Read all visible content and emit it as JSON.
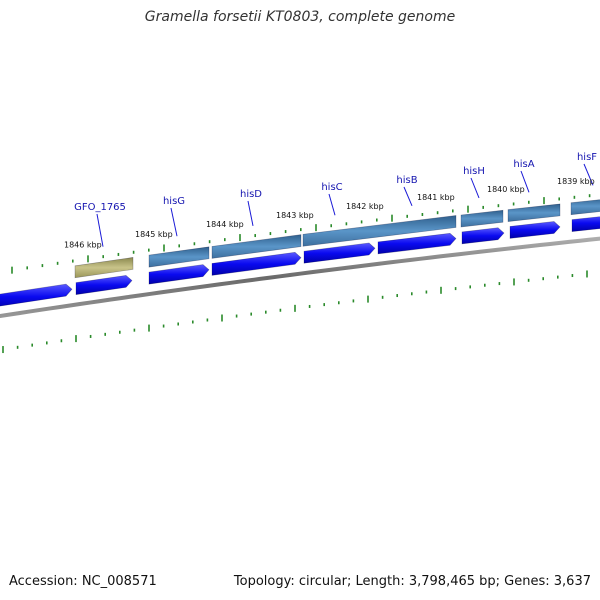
{
  "title": "Gramella forsetii KT0803, complete genome",
  "footer": {
    "accession": "Accession: NC_008571",
    "summary": "Topology: circular; Length: 3,798,465 bp; Genes: 3,637"
  },
  "colors": {
    "backbone": "#808080",
    "cds_forward": "#0a0af0",
    "gene_feature": "#4a86b8",
    "unknown_feature": "#b8b478",
    "tick": "#2a8a2a",
    "gene_label": "#1515b0"
  },
  "kbp_ticks": [
    {
      "label": "1846 kbp"
    },
    {
      "label": "1845 kbp"
    },
    {
      "label": "1844 kbp"
    },
    {
      "label": "1843 kbp"
    },
    {
      "label": "1842 kbp"
    },
    {
      "label": "1841 kbp"
    },
    {
      "label": "1840 kbp"
    },
    {
      "label": "1839 kbp"
    }
  ],
  "genes": [
    {
      "name": "GFO_1765"
    },
    {
      "name": "hisG"
    },
    {
      "name": "hisD"
    },
    {
      "name": "hisC"
    },
    {
      "name": "hisB"
    },
    {
      "name": "hisH"
    },
    {
      "name": "hisA"
    },
    {
      "name": "hisF"
    }
  ]
}
